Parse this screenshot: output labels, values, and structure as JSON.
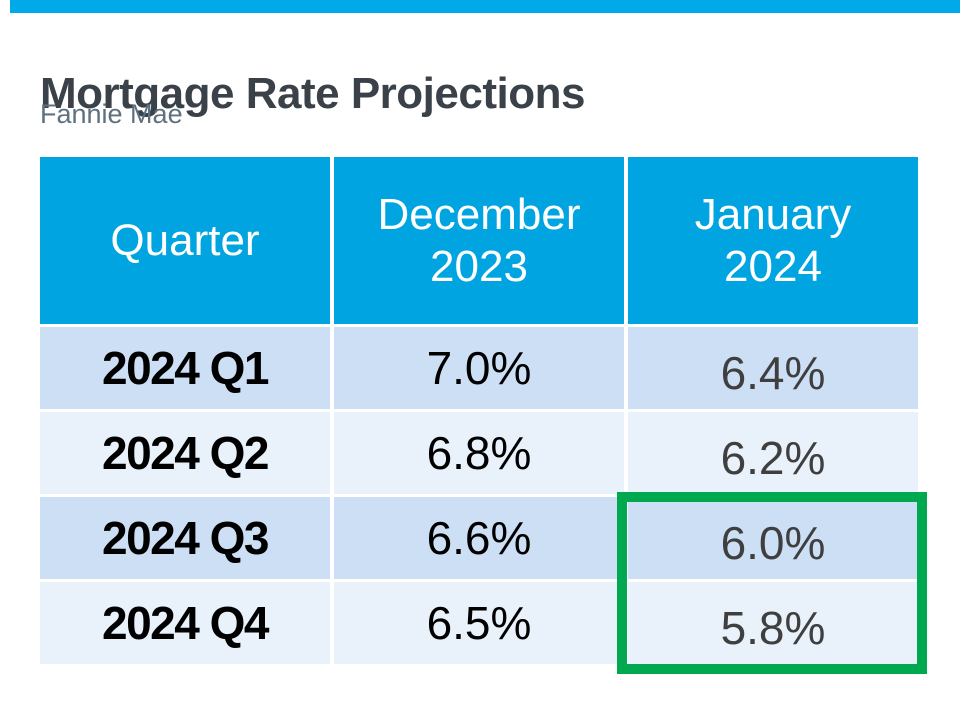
{
  "page": {
    "title": "Mortgage Rate Projections",
    "subtitle": "Fannie Mae"
  },
  "colors": {
    "accent_bar": "#00A9E8",
    "table_header_bg": "#00A4E0",
    "header_text": "#FFFFFF",
    "row_odd_bg": "#CCDFF4",
    "row_even_bg": "#E9F1FB",
    "quarter_text": "#000000",
    "december_text": "#000000",
    "january_text": "#3F3F3F",
    "highlight_border": "#00A94F",
    "title_text": "#3A4148",
    "subtitle_text": "#5D7180"
  },
  "table": {
    "columns": [
      "Quarter",
      "December 2023",
      "January 2024"
    ],
    "rows": [
      {
        "quarter": "2024 Q1",
        "dec_2023": "7.0%",
        "jan_2024": "6.4%"
      },
      {
        "quarter": "2024 Q2",
        "dec_2023": "6.8%",
        "jan_2024": "6.2%"
      },
      {
        "quarter": "2024 Q3",
        "dec_2023": "6.6%",
        "jan_2024": "6.0%"
      },
      {
        "quarter": "2024 Q4",
        "dec_2023": "6.5%",
        "jan_2024": "5.8%"
      }
    ],
    "highlight": {
      "column": "January 2024",
      "rows": [
        "2024 Q3",
        "2024 Q4"
      ],
      "values": [
        "6.0%",
        "5.8%"
      ]
    }
  },
  "chart_data": {
    "type": "table",
    "title": "Mortgage Rate Projections",
    "subtitle": "Fannie Mae",
    "columns": [
      "Quarter",
      "December 2023",
      "January 2024"
    ],
    "categories": [
      "2024 Q1",
      "2024 Q2",
      "2024 Q3",
      "2024 Q4"
    ],
    "series": [
      {
        "name": "December 2023",
        "values": [
          7.0,
          6.8,
          6.6,
          6.5
        ]
      },
      {
        "name": "January 2024",
        "values": [
          6.4,
          6.2,
          6.0,
          5.8
        ]
      }
    ],
    "annotations": [
      "Green rectangle highlights January 2024 projections for 2024 Q3 (6.0%) and 2024 Q4 (5.8%)"
    ]
  }
}
